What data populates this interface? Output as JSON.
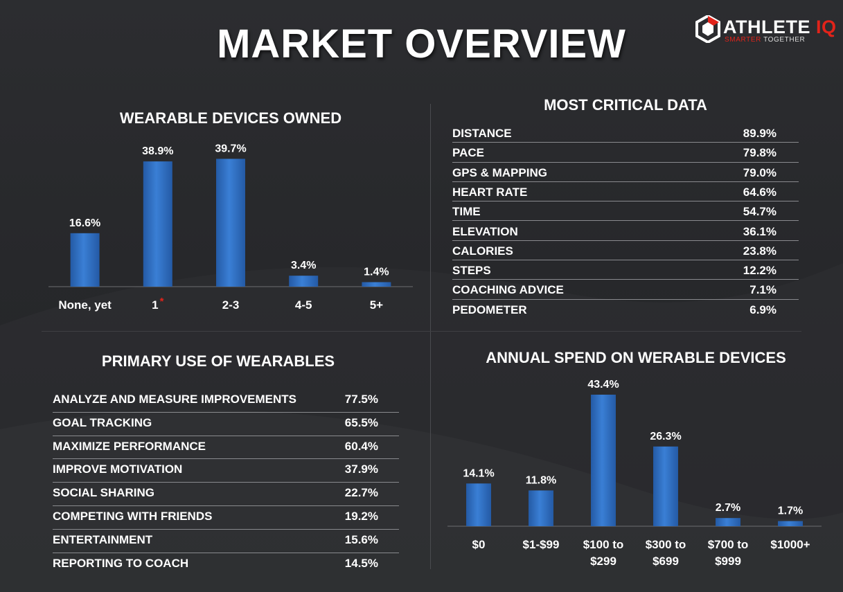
{
  "title": "MARKET OVERVIEW",
  "logo": {
    "word": "ATHLETE",
    "word_accent": "IQ",
    "tagline_accent": "SMARTER",
    "tagline": "TOGETHER",
    "icon": "hexagon-logo-icon"
  },
  "colors": {
    "bar": "#3a7fd5",
    "bar_dark": "#245aa5",
    "accent": "#e2231a",
    "background": "#2a2b2e"
  },
  "chart_data": [
    {
      "type": "bar",
      "title": "WEARABLE DEVICES OWNED",
      "categories": [
        "None, yet",
        "1",
        "2-3",
        "4-5",
        "5+"
      ],
      "values": [
        16.6,
        38.9,
        39.7,
        3.4,
        1.4
      ],
      "labels": [
        "16.6%",
        "38.9%",
        "39.7%",
        "3.4%",
        "1.4%"
      ],
      "footnote_marker": {
        "category_index": 1,
        "symbol": "*"
      },
      "ylim": [
        0,
        40
      ],
      "grid": false,
      "xlabel": "",
      "ylabel": ""
    },
    {
      "type": "bar",
      "title": "ANNUAL SPEND ON WERABLE DEVICES",
      "categories": [
        "$0",
        "$1-$99",
        "$100 to $299",
        "$300 to $699",
        "$700 to $999",
        "$1000+"
      ],
      "category_lines": [
        [
          "$0"
        ],
        [
          "$1-$99"
        ],
        [
          "$100 to",
          "$299"
        ],
        [
          "$300 to",
          "$699"
        ],
        [
          "$700 to",
          "$999"
        ],
        [
          "$1000+"
        ]
      ],
      "values": [
        14.1,
        11.8,
        43.4,
        26.3,
        2.7,
        1.7
      ],
      "labels": [
        "14.1%",
        "11.8%",
        "43.4%",
        "26.3%",
        "2.7%",
        "1.7%"
      ],
      "ylim": [
        0,
        43.4
      ],
      "grid": false,
      "xlabel": "",
      "ylabel": ""
    },
    {
      "type": "table",
      "title": "MOST CRITICAL DATA",
      "rows": [
        {
          "label": "DISTANCE",
          "value": "89.9%"
        },
        {
          "label": "PACE",
          "value": "79.8%"
        },
        {
          "label": "GPS & MAPPING",
          "value": "79.0%"
        },
        {
          "label": "HEART RATE",
          "value": "64.6%"
        },
        {
          "label": "TIME",
          "value": "54.7%"
        },
        {
          "label": "ELEVATION",
          "value": "36.1%"
        },
        {
          "label": "CALORIES",
          "value": "23.8%"
        },
        {
          "label": "STEPS",
          "value": "12.2%"
        },
        {
          "label": "COACHING ADVICE",
          "value": "7.1%"
        },
        {
          "label": "PEDOMETER",
          "value": "6.9%"
        }
      ]
    },
    {
      "type": "table",
      "title": "PRIMARY USE OF WEARABLES",
      "rows": [
        {
          "label": "ANALYZE AND MEASURE IMPROVEMENTS",
          "value": "77.5%"
        },
        {
          "label": "GOAL TRACKING",
          "value": "65.5%"
        },
        {
          "label": "MAXIMIZE PERFORMANCE",
          "value": "60.4%"
        },
        {
          "label": "IMPROVE MOTIVATION",
          "value": "37.9%"
        },
        {
          "label": "SOCIAL SHARING",
          "value": "22.7%"
        },
        {
          "label": "COMPETING WITH FRIENDS",
          "value": "19.2%"
        },
        {
          "label": "ENTERTAINMENT",
          "value": "15.6%"
        },
        {
          "label": "REPORTING TO COACH",
          "value": "14.5%"
        }
      ]
    }
  ]
}
